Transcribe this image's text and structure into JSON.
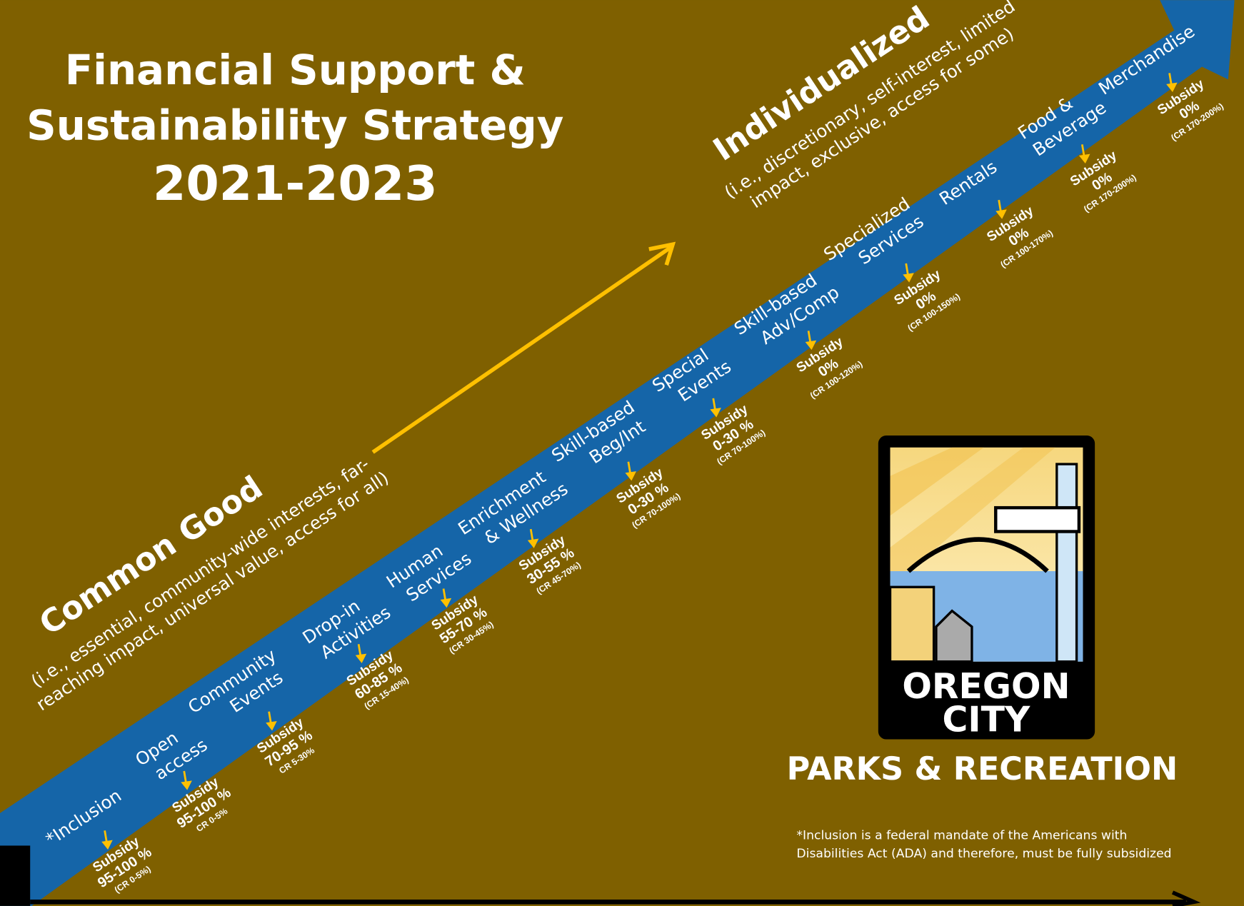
{
  "title": {
    "lines": [
      "Financial Support &",
      "Sustainability Strategy",
      "2021-2023"
    ]
  },
  "common_good": {
    "heading": "Common Good",
    "description": [
      "(i.e., essential, community-wide interests, far-",
      "reaching impact, universal value, access for all)"
    ]
  },
  "individualized": {
    "heading": "Individualized",
    "description": [
      "(i.e., discretionary, self-interest, limited",
      "impact, exclusive, access for some)"
    ]
  },
  "categories": [
    {
      "lines": [
        "*Inclusion"
      ],
      "subsidy": [
        "Subsidy",
        "95-100 %",
        "(CR 0-5%)"
      ]
    },
    {
      "lines": [
        "Open",
        "access"
      ],
      "subsidy": [
        "Subsidy",
        "95-100 %",
        "CR 0-5%"
      ]
    },
    {
      "lines": [
        "Community",
        "Events"
      ],
      "subsidy": [
        "Subsidy",
        "70-95 %",
        "CR 5-30%"
      ]
    },
    {
      "lines": [
        "Drop-in",
        "Activities"
      ],
      "subsidy": [
        "Subsidy",
        "60-85 %",
        "(CR 15-40%)"
      ]
    },
    {
      "lines": [
        "Human",
        "Services"
      ],
      "subsidy": [
        "Subsidy",
        "55-70 %",
        "(CR 30-45%)"
      ]
    },
    {
      "lines": [
        "Enrichment",
        "& Wellness"
      ],
      "subsidy": [
        "Subsidy",
        "30-55 %",
        "(CR 45-70%)"
      ]
    },
    {
      "lines": [
        "Skill-based",
        "Beg/Int"
      ],
      "subsidy": [
        "Subsidy",
        "0-30 %",
        "(CR 70-100%)"
      ]
    },
    {
      "lines": [
        "Special",
        "Events"
      ],
      "subsidy": [
        "Subsidy",
        "0-30 %",
        "(CR 70-100%)"
      ]
    },
    {
      "lines": [
        "Skill-based",
        "Adv/Comp"
      ],
      "subsidy": [
        "Subsidy",
        "0%",
        "(CR 100-120%)"
      ]
    },
    {
      "lines": [
        "Specialized",
        "Services"
      ],
      "subsidy": [
        "Subsidy",
        "0%",
        "(CR 100-150%)"
      ]
    },
    {
      "lines": [
        "Rentals"
      ],
      "subsidy": [
        "Subsidy",
        "0%",
        "(CR 100-170%)"
      ]
    },
    {
      "lines": [
        "Food &",
        "Beverage"
      ],
      "subsidy": [
        "Subsidy",
        "0%",
        "(CR 170-200%)"
      ]
    },
    {
      "lines": [
        "Merchandise"
      ],
      "subsidy": [
        "Subsidy",
        "0%",
        "(CR 170-200%)"
      ]
    }
  ],
  "logo": {
    "lines": [
      "OREGON",
      "CITY"
    ],
    "caption": "PARKS & RECREATION"
  },
  "footnote": [
    "*Inclusion is a federal mandate of the Americans with",
    "Disabilities Act (ADA) and therefore, must be fully subsidized"
  ]
}
